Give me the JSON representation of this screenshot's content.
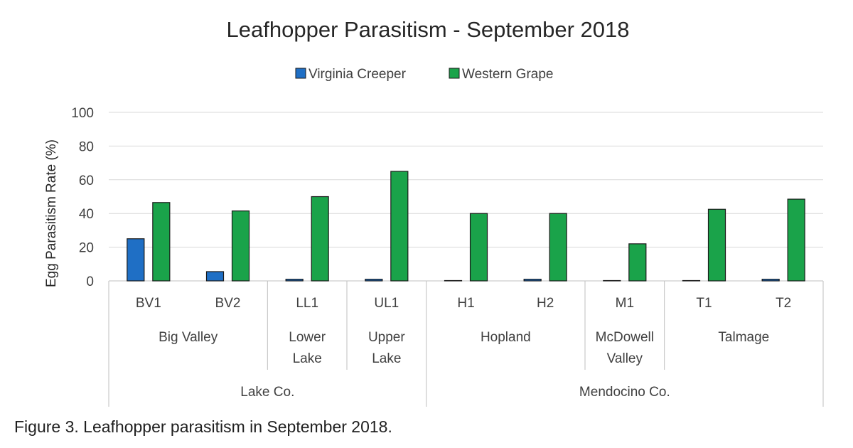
{
  "caption": "Figure 3. Leafhopper parasitism in September 2018.",
  "chart_data": {
    "type": "bar",
    "title": "Leafhopper Parasitism - September 2018",
    "ylabel": "Egg Parasitism Rate (%)",
    "xlabel": "",
    "ylim": [
      0,
      100
    ],
    "yticks": [
      0,
      20,
      40,
      60,
      80,
      100
    ],
    "grid": true,
    "legend_position": "top",
    "categories": [
      "BV1",
      "BV2",
      "LL1",
      "UL1",
      "H1",
      "H2",
      "M1",
      "T1",
      "T2"
    ],
    "site_groups": [
      {
        "lines": [
          "Big Valley"
        ],
        "span": [
          0,
          1
        ]
      },
      {
        "lines": [
          "Lower",
          "Lake"
        ],
        "span": [
          2,
          2
        ]
      },
      {
        "lines": [
          "Upper",
          "Lake"
        ],
        "span": [
          3,
          3
        ]
      },
      {
        "lines": [
          "Hopland"
        ],
        "span": [
          4,
          5
        ]
      },
      {
        "lines": [
          "McDowell",
          "Valley"
        ],
        "span": [
          6,
          6
        ]
      },
      {
        "lines": [
          "Talmage"
        ],
        "span": [
          7,
          8
        ]
      }
    ],
    "counties": [
      {
        "name": "Lake Co.",
        "span": [
          0,
          3
        ]
      },
      {
        "name": "Mendocino Co.",
        "span": [
          4,
          8
        ]
      }
    ],
    "series": [
      {
        "name": "Virginia Creeper",
        "color": "#1f6fc5",
        "values": [
          25,
          5.5,
          1,
          1,
          0,
          1,
          0,
          0,
          1
        ]
      },
      {
        "name": "Western Grape",
        "color": "#1aa34a",
        "values": [
          46.5,
          41.5,
          50,
          65,
          40,
          40,
          22,
          42.5,
          48.5
        ]
      }
    ]
  }
}
